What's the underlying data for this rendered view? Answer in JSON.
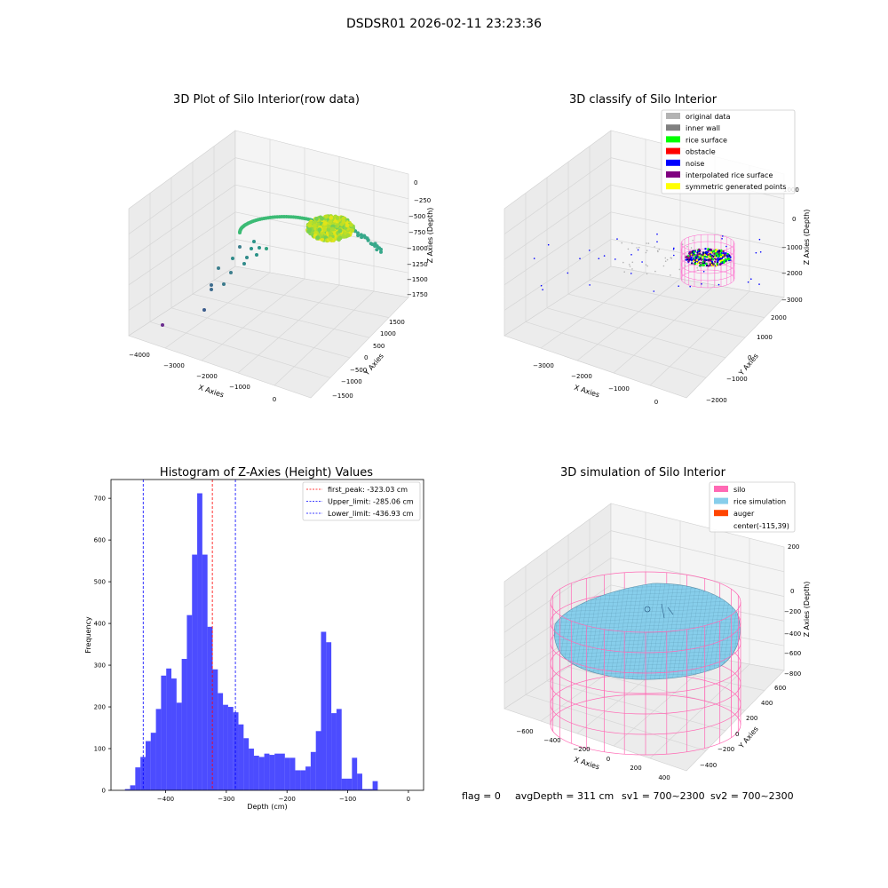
{
  "figure": {
    "suptitle": "DSDSR01 2026-02-11 23:23:36",
    "status_line": {
      "flag": "flag = 0",
      "avg_depth": "avgDepth = 311 cm",
      "sv1": "sv1 = 700~2300",
      "sv2": "sv2 = 700~2300"
    }
  },
  "chart_data": [
    {
      "type": "scatter",
      "projection": "3d",
      "title": "3D Plot of Silo Interior(row data)",
      "xlabel": "X Axies",
      "ylabel": "Y Axies",
      "zlabel": "Z Axies (Depth)",
      "x_ticks": [
        "−4000",
        "−3000",
        "−2000",
        "−1000",
        "0"
      ],
      "y_ticks": [
        "−1500",
        "−1000",
        "−500",
        "0",
        "500",
        "1000",
        "1500"
      ],
      "z_ticks": [
        "0",
        "−250",
        "−500",
        "−750",
        "−1000",
        "−1250",
        "−1500",
        "−1750"
      ],
      "colormap": "viridis"
    },
    {
      "type": "scatter",
      "projection": "3d",
      "title": "3D classify of Silo Interior",
      "xlabel": "X Axies",
      "ylabel": "Y Axies",
      "zlabel": "Z Axies (Depth)",
      "x_ticks": [
        "−3000",
        "−2000",
        "−1000",
        "0"
      ],
      "y_ticks": [
        "−2000",
        "−1000",
        "0",
        "1000",
        "2000"
      ],
      "z_ticks": [
        "1000",
        "0",
        "−1000",
        "−2000",
        "−3000"
      ],
      "legend_position": "top-right",
      "legend": [
        {
          "label": "original data",
          "color": "#b3b3b3"
        },
        {
          "label": "inner wall",
          "color": "#808080"
        },
        {
          "label": "rice surface",
          "color": "#00ff00"
        },
        {
          "label": "obstacle",
          "color": "#ff0000"
        },
        {
          "label": "noise",
          "color": "#0000ff"
        },
        {
          "label": "interpolated rice surface",
          "color": "#800080"
        },
        {
          "label": "symmetric generated points",
          "color": "#ffff00"
        }
      ]
    },
    {
      "type": "bar",
      "subtype": "histogram",
      "title": "Histogram of Z-Axies (Height) Values",
      "xlabel": "Depth (cm)",
      "ylabel": "Frequency",
      "xlim": [
        -490,
        25
      ],
      "ylim": [
        0,
        745
      ],
      "x_ticks": [
        -400,
        -300,
        -200,
        -100,
        0
      ],
      "x_tick_labels": [
        "−400",
        "−300",
        "−200",
        "−100",
        "0"
      ],
      "y_ticks": [
        0,
        100,
        200,
        300,
        400,
        500,
        600,
        700
      ],
      "bar_color": "#0000ff",
      "bin_width": 8.5,
      "bin_start": -467,
      "values": [
        3,
        12,
        55,
        80,
        118,
        138,
        195,
        275,
        292,
        268,
        210,
        315,
        420,
        565,
        712,
        565,
        392,
        290,
        233,
        205,
        200,
        187,
        158,
        125,
        100,
        83,
        80,
        88,
        85,
        88,
        88,
        78,
        78,
        48,
        48,
        57,
        92,
        142,
        380,
        355,
        185,
        195,
        28,
        28,
        78,
        40,
        3,
        3,
        22
      ],
      "vlines": [
        {
          "label": "first_peak: -323.03 cm",
          "x": -323.03,
          "color": "#ff0000"
        },
        {
          "label": "Upper_limit: -285.06 cm",
          "x": -285.06,
          "color": "#0000ff"
        },
        {
          "label": "Lower_limit: -436.93 cm",
          "x": -436.93,
          "color": "#0000ff"
        }
      ],
      "legend_position": "top-right"
    },
    {
      "type": "surface",
      "projection": "3d",
      "title": "3D simulation of Silo Interior",
      "xlabel": "X Axies",
      "ylabel": "Y Axies",
      "zlabel": "Z Axies (Depth)",
      "x_ticks": [
        "−600",
        "−400",
        "−200",
        "0",
        "200",
        "400"
      ],
      "y_ticks": [
        "−400",
        "−200",
        "0",
        "200",
        "400",
        "600"
      ],
      "z_ticks": [
        "200",
        "0",
        "−200",
        "−400",
        "−600",
        "−800"
      ],
      "legend_position": "top-right",
      "legend": [
        {
          "label": "silo",
          "color": "#ff69b4"
        },
        {
          "label": "rice simulation",
          "color": "#87ceeb"
        },
        {
          "label": "auger",
          "color": "#ff4500"
        },
        {
          "label": "center(-115,39)",
          "color": ""
        }
      ]
    }
  ]
}
